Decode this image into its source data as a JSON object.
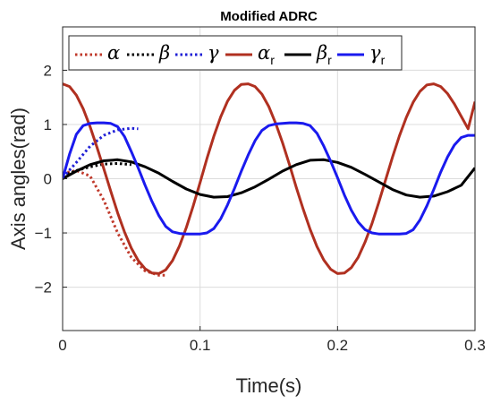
{
  "chart_data": {
    "type": "line",
    "title": "Modified ADRC",
    "xlabel": "Time(s)",
    "ylabel": "Axis angles(rad)",
    "xlim": [
      0,
      0.3
    ],
    "ylim": [
      -2.8,
      2.8
    ],
    "xticks": [
      0,
      0.1,
      0.2,
      0.3
    ],
    "xtick_labels": [
      "0",
      "0.1",
      "0.2",
      "0.3"
    ],
    "yticks": [
      -2,
      -1,
      0,
      1,
      2
    ],
    "ytick_labels": [
      "−2",
      "−1",
      "0",
      "1",
      "2"
    ],
    "grid": true,
    "legend_position": "top",
    "series": [
      {
        "name": "α",
        "subscript": "",
        "color": "#c0392b",
        "dash": "dotted",
        "x": [
          0,
          0.01,
          0.02,
          0.03,
          0.04,
          0.05,
          0.06,
          0.07,
          0.075
        ],
        "y": [
          0.1,
          0.15,
          0.05,
          -0.4,
          -1.0,
          -1.45,
          -1.7,
          -1.78,
          -1.78
        ]
      },
      {
        "name": "β",
        "subscript": "",
        "color": "#000000",
        "dash": "dotted",
        "x": [
          0,
          0.01,
          0.02,
          0.03,
          0.04,
          0.05
        ],
        "y": [
          0.05,
          0.15,
          0.22,
          0.27,
          0.28,
          0.26
        ]
      },
      {
        "name": "γ",
        "subscript": "",
        "color": "#1f1fd6",
        "dash": "dotted",
        "x": [
          0,
          0.01,
          0.02,
          0.03,
          0.04,
          0.05,
          0.055
        ],
        "y": [
          0.02,
          0.3,
          0.6,
          0.8,
          0.9,
          0.93,
          0.92
        ]
      },
      {
        "name": "α",
        "subscript": "r",
        "color": "#b03020",
        "dash": "solid",
        "x": [
          0,
          0.005,
          0.01,
          0.015,
          0.02,
          0.025,
          0.03,
          0.035,
          0.04,
          0.045,
          0.05,
          0.055,
          0.06,
          0.065,
          0.07,
          0.075,
          0.08,
          0.085,
          0.09,
          0.095,
          0.1,
          0.105,
          0.11,
          0.115,
          0.12,
          0.125,
          0.13,
          0.135,
          0.14,
          0.145,
          0.15,
          0.155,
          0.16,
          0.165,
          0.17,
          0.175,
          0.18,
          0.185,
          0.19,
          0.195,
          0.2,
          0.205,
          0.21,
          0.215,
          0.22,
          0.225,
          0.23,
          0.235,
          0.24,
          0.245,
          0.25,
          0.255,
          0.26,
          0.265,
          0.27,
          0.275,
          0.28,
          0.285,
          0.29,
          0.295,
          0.3
        ],
        "y": [
          1.75,
          1.7,
          1.54,
          1.29,
          0.96,
          0.58,
          0.18,
          -0.23,
          -0.63,
          -0.98,
          -1.28,
          -1.51,
          -1.66,
          -1.74,
          -1.75,
          -1.68,
          -1.51,
          -1.24,
          -0.9,
          -0.5,
          -0.07,
          0.37,
          0.78,
          1.14,
          1.43,
          1.63,
          1.74,
          1.75,
          1.7,
          1.56,
          1.33,
          1.02,
          0.66,
          0.26,
          -0.16,
          -0.56,
          -0.93,
          -1.25,
          -1.5,
          -1.67,
          -1.75,
          -1.74,
          -1.64,
          -1.45,
          -1.17,
          -0.83,
          -0.44,
          -0.02,
          0.4,
          0.79,
          1.13,
          1.41,
          1.61,
          1.73,
          1.75,
          1.7,
          1.57,
          1.38,
          1.15,
          0.92,
          1.42
        ]
      },
      {
        "name": "β",
        "subscript": "r",
        "color": "#000000",
        "dash": "solid",
        "x": [
          0,
          0.01,
          0.02,
          0.03,
          0.04,
          0.05,
          0.06,
          0.07,
          0.08,
          0.09,
          0.1,
          0.11,
          0.12,
          0.13,
          0.14,
          0.15,
          0.16,
          0.17,
          0.18,
          0.19,
          0.2,
          0.21,
          0.22,
          0.23,
          0.24,
          0.25,
          0.26,
          0.27,
          0.28,
          0.29,
          0.3
        ],
        "y": [
          0.0,
          0.14,
          0.26,
          0.33,
          0.35,
          0.31,
          0.22,
          0.1,
          -0.05,
          -0.19,
          -0.29,
          -0.34,
          -0.33,
          -0.26,
          -0.15,
          -0.01,
          0.14,
          0.26,
          0.34,
          0.35,
          0.3,
          0.21,
          0.08,
          -0.06,
          -0.2,
          -0.3,
          -0.34,
          -0.32,
          -0.24,
          -0.12,
          0.2
        ]
      },
      {
        "name": "γ",
        "subscript": "r",
        "color": "#1a1aee",
        "dash": "solid",
        "x": [
          0,
          0.005,
          0.01,
          0.015,
          0.02,
          0.025,
          0.03,
          0.035,
          0.04,
          0.045,
          0.05,
          0.055,
          0.06,
          0.065,
          0.07,
          0.075,
          0.08,
          0.085,
          0.09,
          0.095,
          0.1,
          0.105,
          0.11,
          0.115,
          0.12,
          0.125,
          0.13,
          0.135,
          0.14,
          0.145,
          0.15,
          0.155,
          0.16,
          0.165,
          0.17,
          0.175,
          0.18,
          0.185,
          0.19,
          0.195,
          0.2,
          0.205,
          0.21,
          0.215,
          0.22,
          0.225,
          0.23,
          0.235,
          0.24,
          0.245,
          0.25,
          0.255,
          0.26,
          0.265,
          0.27,
          0.275,
          0.28,
          0.285,
          0.29,
          0.295,
          0.3
        ],
        "y": [
          0.0,
          0.45,
          0.82,
          0.98,
          1.02,
          1.03,
          1.03,
          1.02,
          0.96,
          0.78,
          0.5,
          0.2,
          -0.12,
          -0.42,
          -0.68,
          -0.88,
          -0.98,
          -1.01,
          -1.02,
          -1.02,
          -1.02,
          -1.0,
          -0.92,
          -0.74,
          -0.48,
          -0.18,
          0.14,
          0.44,
          0.7,
          0.89,
          0.98,
          1.01,
          1.02,
          1.03,
          1.03,
          1.02,
          0.98,
          0.84,
          0.6,
          0.32,
          0.02,
          -0.3,
          -0.58,
          -0.8,
          -0.94,
          -1.0,
          -1.02,
          -1.02,
          -1.02,
          -1.02,
          -1.01,
          -0.94,
          -0.76,
          -0.5,
          -0.2,
          0.12,
          0.4,
          0.62,
          0.76,
          0.8,
          0.8
        ]
      }
    ]
  }
}
